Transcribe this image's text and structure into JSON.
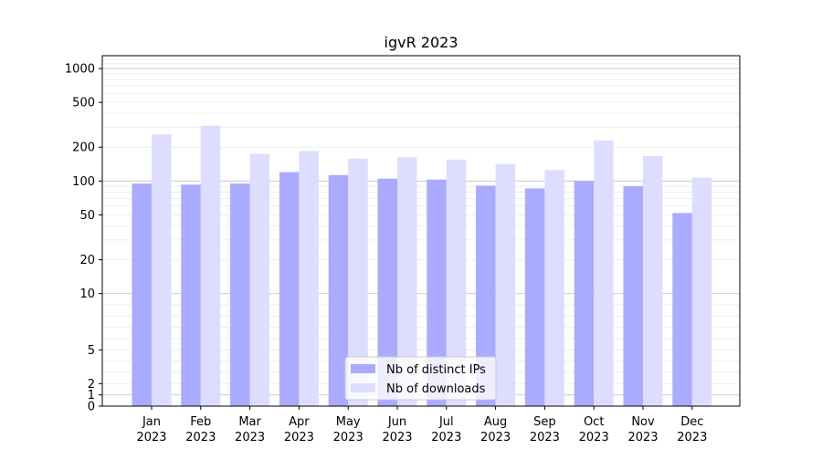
{
  "chart_data": {
    "type": "bar",
    "title": "igvR 2023",
    "xlabel": "",
    "ylabel": "",
    "yscale": "symlog",
    "ylim": [
      0,
      1300
    ],
    "y_ticks": [
      {
        "value": 0,
        "label": "0"
      },
      {
        "value": 1,
        "label": "1"
      },
      {
        "value": 2,
        "label": "2"
      },
      {
        "value": 5,
        "label": "5"
      },
      {
        "value": 10,
        "label": "10"
      },
      {
        "value": 20,
        "label": "20"
      },
      {
        "value": 50,
        "label": "50"
      },
      {
        "value": 100,
        "label": "100"
      },
      {
        "value": 200,
        "label": "200"
      },
      {
        "value": 500,
        "label": "500"
      },
      {
        "value": 1000,
        "label": "1000"
      }
    ],
    "categories": [
      {
        "month": "Jan",
        "year": "2023"
      },
      {
        "month": "Feb",
        "year": "2023"
      },
      {
        "month": "Mar",
        "year": "2023"
      },
      {
        "month": "Apr",
        "year": "2023"
      },
      {
        "month": "May",
        "year": "2023"
      },
      {
        "month": "Jun",
        "year": "2023"
      },
      {
        "month": "Jul",
        "year": "2023"
      },
      {
        "month": "Aug",
        "year": "2023"
      },
      {
        "month": "Sep",
        "year": "2023"
      },
      {
        "month": "Oct",
        "year": "2023"
      },
      {
        "month": "Nov",
        "year": "2023"
      },
      {
        "month": "Dec",
        "year": "2023"
      }
    ],
    "series": [
      {
        "name": "Nb of distinct IPs",
        "color": "#aaaaff",
        "values": [
          95,
          93,
          95,
          120,
          113,
          105,
          103,
          91,
          86,
          100,
          90,
          52
        ]
      },
      {
        "name": "Nb of downloads",
        "color": "#ddddff",
        "values": [
          260,
          310,
          175,
          185,
          158,
          163,
          155,
          142,
          125,
          230,
          167,
          107
        ]
      }
    ],
    "grid": true,
    "legend_position": "bottom-center"
  }
}
